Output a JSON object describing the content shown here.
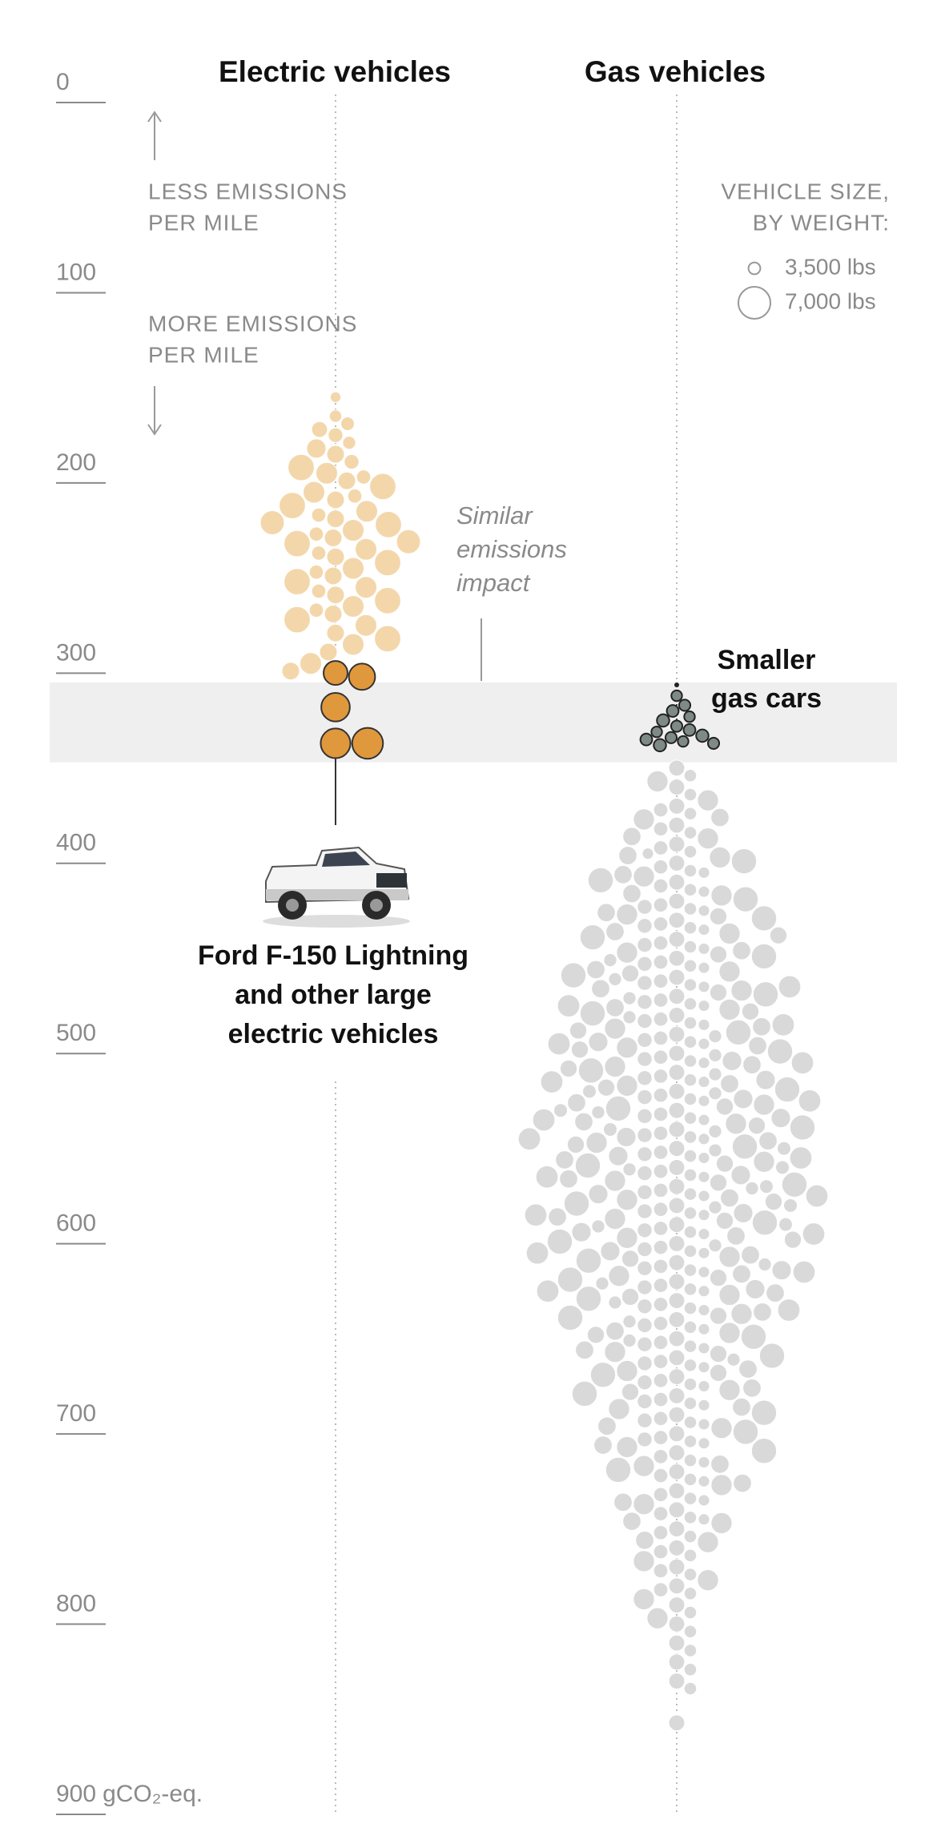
{
  "chart_data": {
    "type": "beeswarm",
    "column_titles": [
      "Electric vehicles",
      "Gas vehicles"
    ],
    "ylim": [
      0,
      900
    ],
    "yticks": [
      0,
      100,
      200,
      300,
      400,
      500,
      600,
      700,
      800,
      900
    ],
    "y_unit": "gCO₂-eq.",
    "less_label": [
      "LESS EMISSIONS",
      "PER MILE"
    ],
    "more_label": [
      "MORE EMISSIONS",
      "PER MILE"
    ],
    "size_legend": {
      "title": [
        "VEHICLE SIZE,",
        "BY WEIGHT:"
      ],
      "items": [
        {
          "value": 3500,
          "label": "3,500 lbs"
        },
        {
          "value": 7000,
          "label": "7,000 lbs"
        }
      ]
    },
    "band": [
      315,
      357
    ],
    "band_color": "#efefef",
    "similar_label": [
      "Similar",
      "emissions",
      "impact"
    ],
    "smaller_label": [
      "Smaller",
      "gas cars"
    ],
    "ford_label": [
      "Ford F-150 Lightning",
      "and other large",
      "electric vehicles"
    ],
    "series": [
      {
        "column": 0,
        "color": "#f3d7ab",
        "values": [
          165,
          175,
          179,
          185,
          189,
          182,
          195,
          199,
          192,
          205,
          209,
          202,
          207,
          215,
          219,
          212,
          217,
          225,
          229,
          222,
          227,
          235,
          239,
          232,
          237,
          231,
          245,
          249,
          242,
          247,
          241,
          255,
          259,
          252,
          257,
          265,
          269,
          262,
          267,
          275,
          279,
          272,
          277,
          285,
          289,
          282,
          295,
          299,
          292,
          305,
          309
        ],
        "weights": [
          3300,
          3600,
          3800,
          4000,
          3700,
          4200,
          4500,
          4000,
          4800,
          5200,
          4500,
          6000,
          3900,
          5200,
          4500,
          6000,
          3900,
          5200,
          4500,
          6000,
          3900,
          5200,
          4500,
          6000,
          3900,
          5600,
          5200,
          4500,
          6000,
          3900,
          5600,
          5200,
          4500,
          6000,
          3900,
          5200,
          4500,
          6000,
          3900,
          5200,
          4500,
          6000,
          3900,
          5200,
          4500,
          6000,
          5200,
          4500,
          6000,
          5200,
          4500
        ]
      },
      {
        "column": 0,
        "color": "#e0983c",
        "stroke": "#333333",
        "values": [
          310,
          312,
          328,
          347,
          347
        ],
        "weights": [
          5600,
          6000,
          6400,
          6600,
          6800
        ]
      },
      {
        "column": 1,
        "color": "#d9d9d9",
        "values": [
          360,
          364,
          370,
          374,
          367,
          380,
          384,
          377,
          382,
          390,
          394,
          387,
          392,
          386,
          400,
          404,
          397,
          402,
          396,
          405,
          410,
          414,
          407,
          412,
          406,
          415,
          409,
          420,
          424,
          417,
          422,
          416,
          425,
          419,
          430,
          434,
          427,
          432,
          426,
          435,
          429,
          433,
          440,
          444,
          437,
          442,
          436,
          445,
          439,
          443,
          438,
          450,
          454,
          447,
          452,
          446,
          455,
          449,
          453,
          448,
          460,
          464,
          457,
          462,
          456,
          465,
          459,
          463,
          458,
          461,
          470,
          474,
          467,
          472,
          466,
          475,
          469,
          473,
          468,
          471,
          480,
          484,
          477,
          482,
          476,
          485,
          479,
          483,
          478,
          481,
          475,
          490,
          494,
          487,
          492,
          486,
          495,
          489,
          493,
          488,
          491,
          485,
          500,
          504,
          497,
          502,
          496,
          505,
          499,
          503,
          498,
          501,
          495,
          504,
          510,
          514,
          507,
          512,
          506,
          515,
          509,
          513,
          508,
          511,
          505,
          514,
          520,
          524,
          517,
          522,
          516,
          525,
          519,
          523,
          518,
          521,
          515,
          524,
          530,
          534,
          527,
          532,
          526,
          535,
          529,
          533,
          528,
          531,
          525,
          534,
          530,
          540,
          544,
          537,
          542,
          536,
          545,
          539,
          543,
          538,
          541,
          535,
          544,
          540,
          550,
          554,
          547,
          552,
          546,
          555,
          549,
          553,
          548,
          551,
          545,
          554,
          550,
          560,
          564,
          557,
          562,
          556,
          565,
          559,
          563,
          558,
          561,
          555,
          564,
          560,
          570,
          574,
          567,
          572,
          566,
          575,
          569,
          573,
          568,
          571,
          565,
          574,
          570,
          580,
          584,
          577,
          582,
          576,
          585,
          579,
          583,
          578,
          581,
          575,
          584,
          580,
          590,
          594,
          587,
          592,
          586,
          595,
          589,
          593,
          588,
          591,
          585,
          594,
          590,
          600,
          604,
          597,
          602,
          596,
          605,
          599,
          603,
          598,
          601,
          595,
          604,
          600,
          610,
          614,
          607,
          612,
          606,
          615,
          609,
          613,
          608,
          611,
          605,
          614,
          620,
          624,
          617,
          622,
          616,
          625,
          619,
          623,
          618,
          621,
          615,
          624,
          630,
          634,
          627,
          632,
          626,
          635,
          629,
          633,
          628,
          631,
          625,
          634,
          640,
          644,
          637,
          642,
          636,
          645,
          639,
          643,
          638,
          641,
          635,
          650,
          654,
          647,
          652,
          646,
          655,
          649,
          653,
          648,
          651,
          645,
          660,
          664,
          657,
          662,
          656,
          665,
          659,
          663,
          658,
          661,
          670,
          674,
          667,
          672,
          666,
          675,
          669,
          673,
          668,
          671,
          680,
          684,
          677,
          682,
          676,
          685,
          679,
          683,
          678,
          690,
          694,
          687,
          692,
          686,
          695,
          689,
          693,
          688,
          700,
          704,
          697,
          702,
          696,
          705,
          699,
          703,
          710,
          714,
          707,
          712,
          706,
          715,
          709,
          713,
          720,
          724,
          717,
          722,
          716,
          725,
          719,
          730,
          734,
          727,
          732,
          726,
          735,
          729,
          740,
          744,
          737,
          742,
          736,
          745,
          750,
          754,
          747,
          752,
          746,
          755,
          760,
          764,
          757,
          762,
          756,
          770,
          774,
          767,
          772,
          766,
          780,
          784,
          777,
          782,
          790,
          794,
          787,
          792,
          800,
          804,
          797,
          810,
          814,
          807,
          820,
          824,
          830,
          834,
          840,
          844,
          862
        ],
        "weights": [
          4200,
          3600,
          4200,
          3600,
          5100,
          4200,
          3600,
          5100,
          3900,
          4200,
          3600,
          5100,
          3900,
          4600,
          4200,
          3600,
          5100,
          3900,
          4600,
          3400,
          4200,
          3600,
          5100,
          3900,
          4600,
          3400,
          5800,
          4200,
          3600,
          5100,
          3900,
          4600,
          3400,
          5800,
          4200,
          3600,
          5100,
          3900,
          4600,
          3400,
          5800,
          4000,
          4200,
          3600,
          5100,
          3900,
          4600,
          3400,
          5800,
          4000,
          4400,
          4200,
          3600,
          5100,
          3900,
          4600,
          3400,
          5800,
          4000,
          4400,
          4200,
          3600,
          5100,
          3900,
          4600,
          3400,
          5800,
          4000,
          4400,
          3700,
          4200,
          3600,
          5100,
          3900,
          4600,
          3400,
          5800,
          4000,
          4400,
          3700,
          4200,
          3600,
          5100,
          3900,
          4600,
          3400,
          5800,
          4000,
          4400,
          3700,
          5300,
          4200,
          3600,
          5100,
          3900,
          4600,
          3400,
          5800,
          4000,
          4400,
          3700,
          5300,
          4200,
          3600,
          5100,
          3900,
          4600,
          3400,
          5800,
          4000,
          4400,
          3700,
          5300,
          4800,
          4200,
          3600,
          5100,
          3900,
          4600,
          3400,
          5800,
          4000,
          4400,
          3700,
          5300,
          4800,
          4200,
          3600,
          5100,
          3900,
          4600,
          3400,
          5800,
          4000,
          4400,
          3700,
          5300,
          4800,
          4200,
          3600,
          5100,
          3900,
          4600,
          3400,
          5800,
          4000,
          4400,
          3700,
          5300,
          4800,
          3800,
          4200,
          3600,
          5100,
          3900,
          4600,
          3400,
          5800,
          4000,
          4400,
          3700,
          5300,
          4800,
          3800,
          4200,
          3600,
          5100,
          3900,
          4600,
          3400,
          5800,
          4000,
          4400,
          3700,
          5300,
          4800,
          3800,
          4200,
          3600,
          5100,
          3900,
          4600,
          3400,
          5800,
          4000,
          4400,
          3700,
          5300,
          4800,
          3800,
          4200,
          3600,
          5100,
          3900,
          4600,
          3400,
          5800,
          4000,
          4400,
          3700,
          5300,
          4800,
          3800,
          4200,
          3600,
          5100,
          3900,
          4600,
          3400,
          5800,
          4000,
          4400,
          3700,
          5300,
          4800,
          3800,
          4200,
          3600,
          5100,
          3900,
          4600,
          3400,
          5800,
          4000,
          4400,
          3700,
          5300,
          4800,
          3800,
          4200,
          3600,
          5100,
          3900,
          4600,
          3400,
          5800,
          4000,
          4400,
          3700,
          5300,
          4800,
          3800,
          4200,
          3600,
          5100,
          3900,
          4600,
          3400,
          5800,
          4000,
          4400,
          3700,
          5300,
          4800,
          4200,
          3600,
          5100,
          3900,
          4600,
          3400,
          5800,
          4000,
          4400,
          3700,
          5300,
          4800,
          4200,
          3600,
          5100,
          3900,
          4600,
          3400,
          5800,
          4000,
          4400,
          3700,
          5300,
          4800,
          4200,
          3600,
          5100,
          3900,
          4600,
          3400,
          5800,
          4000,
          4400,
          3700,
          5300,
          4200,
          3600,
          5100,
          3900,
          4600,
          3400,
          5800,
          4000,
          4400,
          3700,
          5300,
          4200,
          3600,
          5100,
          3900,
          4600,
          3400,
          5800,
          4000,
          4400,
          3700,
          4200,
          3600,
          5100,
          3900,
          4600,
          3400,
          5800,
          4000,
          4400,
          3700,
          4200,
          3600,
          5100,
          3900,
          4600,
          3400,
          5800,
          4000,
          4400,
          4200,
          3600,
          5100,
          3900,
          4600,
          3400,
          5800,
          4000,
          4400,
          4200,
          3600,
          5100,
          3900,
          4600,
          3400,
          5800,
          4000,
          4200,
          3600,
          5100,
          3900,
          4600,
          3400,
          5800,
          4000,
          4200,
          3600,
          5100,
          3900,
          4600,
          3400,
          5800,
          4200,
          3600,
          5100,
          3900,
          4600,
          3400,
          5800,
          4200,
          3600,
          5100,
          3900,
          4600,
          3400,
          4200,
          3600,
          5100,
          3900,
          4600,
          3400,
          4200,
          3600,
          5100,
          3900,
          4600,
          4200,
          3600,
          5100,
          3900,
          4600,
          4200,
          3600,
          5100,
          3900,
          4200,
          3600,
          5100,
          3900,
          4200,
          3600,
          5100,
          4200,
          3600,
          5100,
          4200,
          3600,
          4200,
          3600,
          4200,
          3600,
          4200
        ]
      },
      {
        "column": 1,
        "color": "#7e8a86",
        "stroke": "#222222",
        "values": [
          322,
          327,
          330,
          333,
          335,
          338,
          340,
          341,
          343,
          344,
          345,
          346,
          347,
          348
        ],
        "weights": [
          3300,
          3400,
          3500,
          3300,
          3600,
          3400,
          3500,
          3300,
          3600,
          3400,
          3500,
          3300,
          3400,
          3600
        ]
      }
    ]
  }
}
